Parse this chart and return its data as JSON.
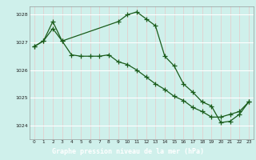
{
  "title": "Graphe pression niveau de la mer (hPa)",
  "bg_color": "#cff0eb",
  "plot_bg_color": "#cff0eb",
  "line_color": "#1a5c1a",
  "grid_color_v": "#e8c8c8",
  "grid_color_h": "#ffffff",
  "title_bg": "#2d6b2d",
  "title_fg": "#ffffff",
  "xlim": [
    -0.5,
    23.5
  ],
  "ylim": [
    1023.5,
    1028.3
  ],
  "yticks": [
    1024,
    1025,
    1026,
    1027,
    1028
  ],
  "xticks": [
    0,
    1,
    2,
    3,
    4,
    5,
    6,
    7,
    8,
    9,
    10,
    11,
    12,
    13,
    14,
    15,
    16,
    17,
    18,
    19,
    20,
    21,
    22,
    23
  ],
  "series1_x": [
    0,
    1,
    2,
    3,
    4,
    5,
    6,
    7,
    8,
    9,
    10,
    11,
    12,
    13,
    14,
    15,
    16,
    17,
    18,
    19,
    20,
    21,
    22,
    23
  ],
  "series1_y": [
    1026.85,
    1027.05,
    1027.5,
    1027.05,
    1026.55,
    1026.5,
    1026.5,
    1026.5,
    1026.55,
    1026.3,
    1026.2,
    1026.0,
    1025.75,
    1025.5,
    1025.3,
    1025.05,
    1024.9,
    1024.65,
    1024.5,
    1024.3,
    1024.3,
    1024.4,
    1024.5,
    1024.85
  ],
  "series2_x": [
    0,
    1,
    2,
    3,
    9,
    10,
    11,
    12,
    13,
    14,
    15,
    16,
    17,
    18,
    19,
    20,
    21,
    22,
    23
  ],
  "series2_y": [
    1026.85,
    1027.05,
    1027.75,
    1027.05,
    1027.75,
    1028.0,
    1028.1,
    1027.85,
    1027.6,
    1026.5,
    1026.15,
    1025.5,
    1025.2,
    1024.85,
    1024.7,
    1024.1,
    1024.15,
    1024.4,
    1024.85
  ]
}
